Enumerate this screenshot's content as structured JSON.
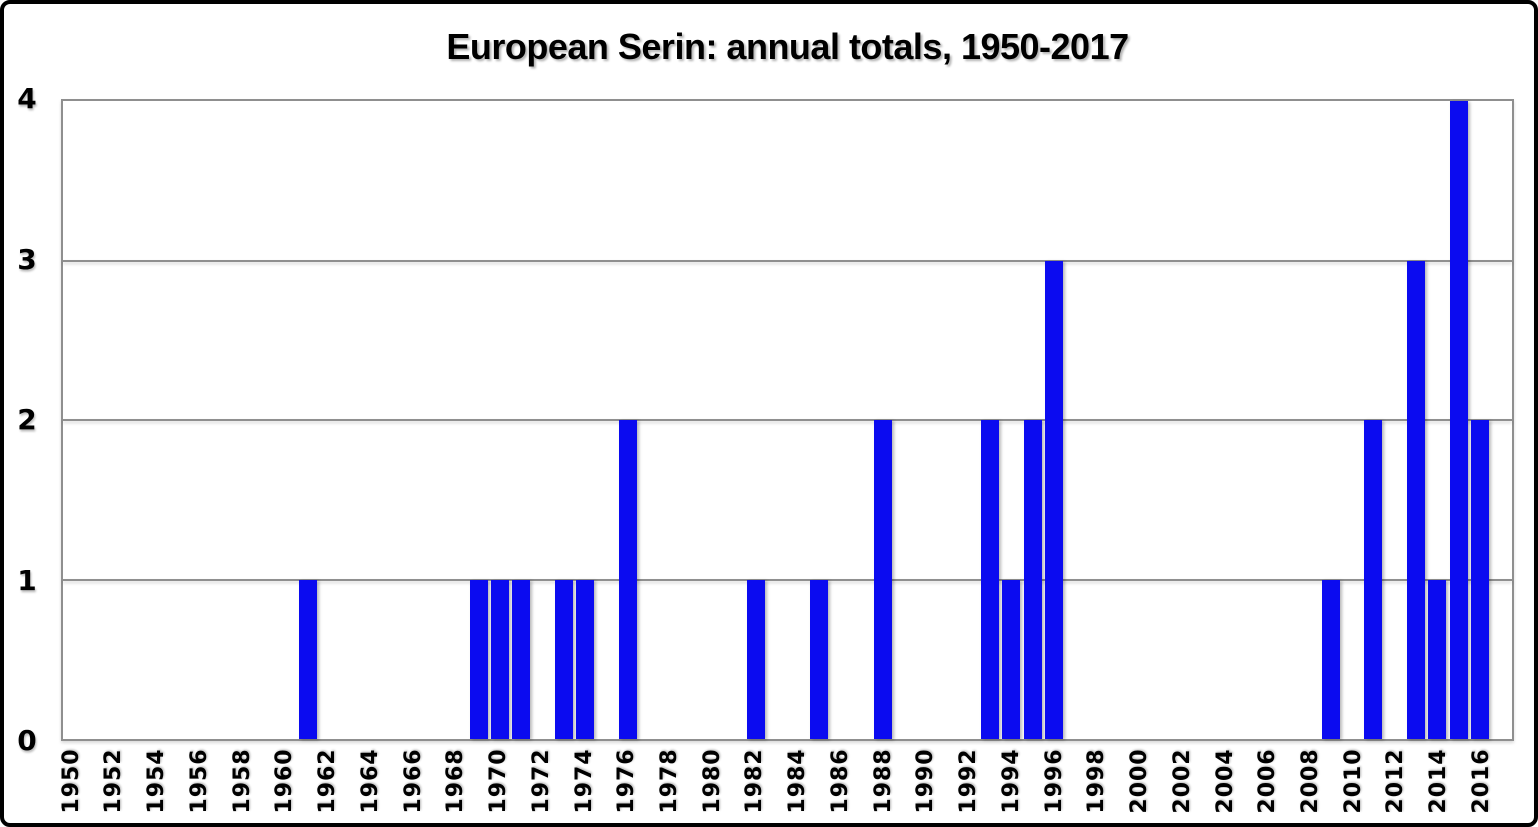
{
  "chart_data": {
    "type": "bar",
    "title": "European Serin: annual totals, 1950-2017",
    "xlabel": "",
    "ylabel": "",
    "x_start": 1950,
    "x_end": 2017,
    "x_tick_labels": [
      "1950",
      "1952",
      "1954",
      "1956",
      "1958",
      "1960",
      "1962",
      "1964",
      "1966",
      "1968",
      "1970",
      "1972",
      "1974",
      "1976",
      "1978",
      "1980",
      "1982",
      "1984",
      "1986",
      "1988",
      "1990",
      "1992",
      "1994",
      "1996",
      "1998",
      "2000",
      "2002",
      "2004",
      "2006",
      "2008",
      "2010",
      "2012",
      "2014",
      "2016"
    ],
    "y_ticks": [
      "0",
      "1",
      "2",
      "3",
      "4"
    ],
    "ylim": [
      0,
      4
    ],
    "grid": "horizontal-gridlines-on",
    "legend": "none",
    "bar_color": "#0b0bf0",
    "values_by_year": {
      "1961": 1,
      "1969": 1,
      "1970": 1,
      "1971": 1,
      "1973": 1,
      "1974": 1,
      "1976": 2,
      "1982": 1,
      "1985": 1,
      "1988": 2,
      "1993": 2,
      "1994": 1,
      "1995": 2,
      "1996": 3,
      "2009": 1,
      "2011": 2,
      "2013": 3,
      "2014": 1,
      "2015": 4,
      "2016": 2
    },
    "default_value_for_unlisted_years": 0
  }
}
